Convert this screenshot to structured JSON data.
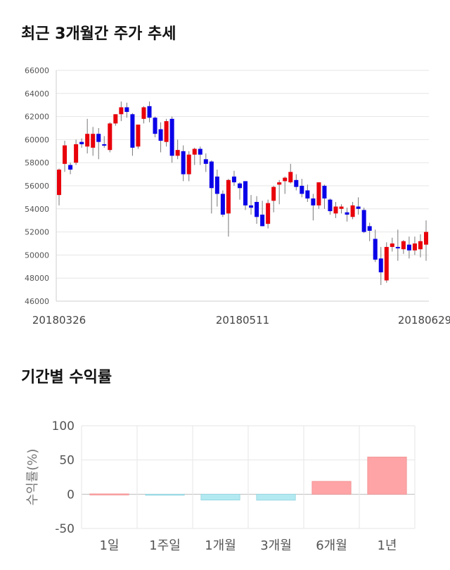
{
  "sections": {
    "price_title": "최근 3개월간 주가 추세",
    "return_title": "기간별 수익률"
  },
  "colors": {
    "up": "#e8000b",
    "down": "#0a00e8",
    "pos_bar": "#ffa4a6",
    "neg_bar": "#b3e9f1",
    "grid": "#e6e6e6"
  },
  "chart_data": [
    {
      "type": "candlestick",
      "title": "최근 3개월간 주가 추세",
      "ylim": [
        46000,
        66000
      ],
      "yticks": [
        "46000",
        "48000",
        "50000",
        "52000",
        "54000",
        "56000",
        "58000",
        "60000",
        "62000",
        "64000",
        "66000"
      ],
      "xtick_labels": [
        "20180326",
        "20180511",
        "20180629"
      ],
      "grid": true,
      "candles": [
        [
          55200,
          57400,
          54300,
          57500
        ],
        [
          57900,
          59500,
          57200,
          59900
        ],
        [
          57800,
          57400,
          57000,
          58000
        ],
        [
          58000,
          59600,
          57800,
          60000
        ],
        [
          59800,
          59600,
          59300,
          60100
        ],
        [
          59400,
          60500,
          58800,
          61800
        ],
        [
          59300,
          60500,
          58600,
          61100
        ],
        [
          60500,
          59800,
          58300,
          61000
        ],
        [
          59600,
          59500,
          59300,
          60300
        ],
        [
          59100,
          61400,
          58900,
          61500
        ],
        [
          61400,
          62200,
          61200,
          62200
        ],
        [
          62200,
          62800,
          61600,
          63300
        ],
        [
          62800,
          62400,
          61900,
          63200
        ],
        [
          62200,
          59300,
          58600,
          62300
        ],
        [
          59400,
          61300,
          59200,
          61300
        ],
        [
          61800,
          62800,
          61400,
          62900
        ],
        [
          62900,
          61900,
          61500,
          63300
        ],
        [
          61900,
          60500,
          60200,
          62000
        ],
        [
          60900,
          59900,
          58900,
          61500
        ],
        [
          59800,
          61600,
          59400,
          61800
        ],
        [
          61800,
          58600,
          58000,
          62000
        ],
        [
          58600,
          59100,
          58300,
          60000
        ],
        [
          59000,
          57000,
          56400,
          59500
        ],
        [
          57000,
          58700,
          56400,
          59000
        ],
        [
          58700,
          59200,
          57800,
          59300
        ],
        [
          59200,
          58700,
          57800,
          59400
        ],
        [
          58300,
          57900,
          57200,
          58800
        ],
        [
          58100,
          55800,
          53600,
          58200
        ],
        [
          56800,
          55300,
          54200,
          57400
        ],
        [
          55300,
          53500,
          53300,
          55600
        ],
        [
          53600,
          56500,
          51600,
          56600
        ],
        [
          56800,
          56300,
          56000,
          57300
        ],
        [
          56200,
          55800,
          54800,
          56300
        ],
        [
          56400,
          54300,
          53900,
          56400
        ],
        [
          54300,
          54100,
          53500,
          55200
        ],
        [
          54600,
          53300,
          52700,
          55100
        ],
        [
          53500,
          52500,
          52500,
          54700
        ],
        [
          52700,
          54500,
          52300,
          54800
        ],
        [
          54700,
          55900,
          53700,
          56000
        ],
        [
          56100,
          56300,
          54400,
          56500
        ],
        [
          56400,
          56700,
          55300,
          56800
        ],
        [
          56300,
          57200,
          56200,
          57900
        ],
        [
          56500,
          55900,
          55600,
          57000
        ],
        [
          56000,
          55300,
          55000,
          56600
        ],
        [
          55600,
          54900,
          54600,
          56100
        ],
        [
          54900,
          54300,
          53000,
          55300
        ],
        [
          54300,
          56300,
          54000,
          56300
        ],
        [
          56000,
          54900,
          54000,
          56100
        ],
        [
          54800,
          53800,
          53500,
          54900
        ],
        [
          53600,
          54200,
          53200,
          54600
        ],
        [
          54000,
          54200,
          53600,
          54400
        ],
        [
          53700,
          53500,
          52900,
          54100
        ],
        [
          53300,
          54300,
          53100,
          54600
        ],
        [
          54200,
          54000,
          53500,
          55000
        ],
        [
          53900,
          52000,
          51900,
          54100
        ],
        [
          52500,
          52100,
          51200,
          52800
        ],
        [
          51400,
          49600,
          49400,
          52200
        ],
        [
          49700,
          48500,
          47400,
          50700
        ],
        [
          47800,
          50700,
          47600,
          51100
        ],
        [
          50700,
          51000,
          50300,
          51500
        ],
        [
          50700,
          50600,
          49500,
          52200
        ],
        [
          50500,
          51200,
          50100,
          51300
        ],
        [
          50900,
          50400,
          49700,
          51600
        ],
        [
          50400,
          51000,
          50000,
          51600
        ],
        [
          50500,
          51200,
          49800,
          51800
        ],
        [
          50900,
          52000,
          49500,
          53000
        ]
      ]
    },
    {
      "type": "bar",
      "ylabel": "수익률(%)",
      "ylim": [
        -50,
        100
      ],
      "yticks": [
        "100",
        "50",
        "0",
        "-50"
      ],
      "categories": [
        "1일",
        "1주일",
        "1개월",
        "3개월",
        "6개월",
        "1년"
      ],
      "values": [
        0.5,
        -1.2,
        -8.5,
        -8.7,
        18.8,
        54.3
      ],
      "grid": true
    }
  ]
}
